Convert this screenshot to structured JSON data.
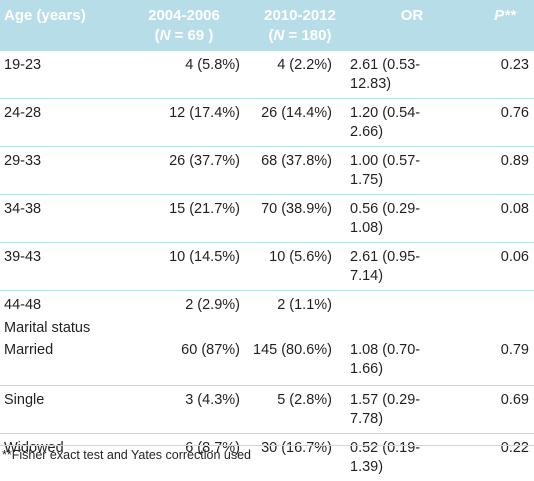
{
  "header": {
    "age": "Age (years)",
    "col1_line1": "2004-2006",
    "col1_line2_open": "(",
    "col1_n": "N",
    "col1_line2_rest": " = 69 )",
    "col2_line1": "2010-2012",
    "col2_line2_open": "(",
    "col2_n": "N",
    "col2_line2_rest": " = 180)",
    "or": "OR",
    "p": "P**"
  },
  "rows": [
    {
      "label": "19-23",
      "v1": "4 (5.8%)",
      "v2": "4 (2.2%)",
      "or_line1": "2.61 (0.53-",
      "or_line2": "12.83)",
      "p": "0.23"
    },
    {
      "label": "24-28",
      "v1": "12 (17.4%)",
      "v2": "26 (14.4%)",
      "or_line1": "1.20 (0.54-",
      "or_line2": "2.66)",
      "p": "0.76"
    },
    {
      "label": "29-33",
      "v1": "26 (37.7%)",
      "v2": "68 (37.8%)",
      "or_line1": "1.00 (0.57-",
      "or_line2": "1.75)",
      "p": "0.89"
    },
    {
      "label": "34-38",
      "v1": "15 (21.7%)",
      "v2": "70 (38.9%)",
      "or_line1": "0.56 (0.29-",
      "or_line2": "1.08)",
      "p": "0.08"
    },
    {
      "label": "39-43",
      "v1": "10 (14.5%)",
      "v2": "10 (5.6%)",
      "or_line1": "2.61 (0.95-",
      "or_line2": "7.14)",
      "p": "0.06"
    },
    {
      "label": "44-48",
      "v1": "2 (2.9%)",
      "v2": "2 (1.1%)",
      "or_line1": "",
      "or_line2": "",
      "p": ""
    }
  ],
  "section": "Marital status",
  "marital_rows": [
    {
      "label": "Married",
      "v1": "60 (87%)",
      "v2": "145 (80.6%)",
      "or_line1": "1.08 (0.70-",
      "or_line2": "1.66)",
      "p": "0.79"
    },
    {
      "label": "Single",
      "v1": "3 (4.3%)",
      "v2": "5 (2.8%)",
      "or_line1": "1.57 (0.29-",
      "or_line2": "7.78)",
      "p": "0.69"
    },
    {
      "label": "Widowed",
      "v1": "6 (8.7%)",
      "v2": "30 (16.7%)",
      "or_line1": "0.52 (0.19-",
      "or_line2": "1.39)",
      "p": "0.22"
    }
  ],
  "footnote": "**Fisher exact test and Yates correction used",
  "colors": {
    "header_bg": "#b7dde8",
    "header_text": "#ffffff",
    "rule": "#b7dde8"
  }
}
